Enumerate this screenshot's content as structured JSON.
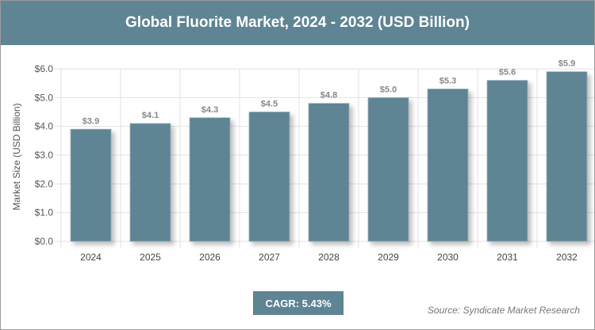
{
  "title": "Global Fluorite Market, 2024 - 2032 (USD Billion)",
  "cagr_label": "CAGR: 5.43%",
  "source": "Source: Syndicate Market Research",
  "colors": {
    "header": "#5f8494",
    "bar": "#5f8494"
  },
  "chart_data": {
    "type": "bar",
    "title": "Global Fluorite Market, 2024 - 2032 (USD Billion)",
    "xlabel": "",
    "ylabel": "Market Size (USD Billion)",
    "categories": [
      "2024",
      "2025",
      "2026",
      "2027",
      "2028",
      "2029",
      "2030",
      "2031",
      "2032"
    ],
    "values": [
      3.9,
      4.1,
      4.3,
      4.5,
      4.8,
      5.0,
      5.3,
      5.6,
      5.9
    ],
    "data_labels": [
      "$3.9",
      "$4.1",
      "$4.3",
      "$4.5",
      "$4.8",
      "$5.0",
      "$5.3",
      "$5.6",
      "$5.9"
    ],
    "yticks": [
      "$0.0",
      "$1.0",
      "$2.0",
      "$3.0",
      "$4.0",
      "$5.0",
      "$6.0"
    ],
    "ylim": [
      0,
      6
    ],
    "grid": true,
    "legend": "none"
  }
}
